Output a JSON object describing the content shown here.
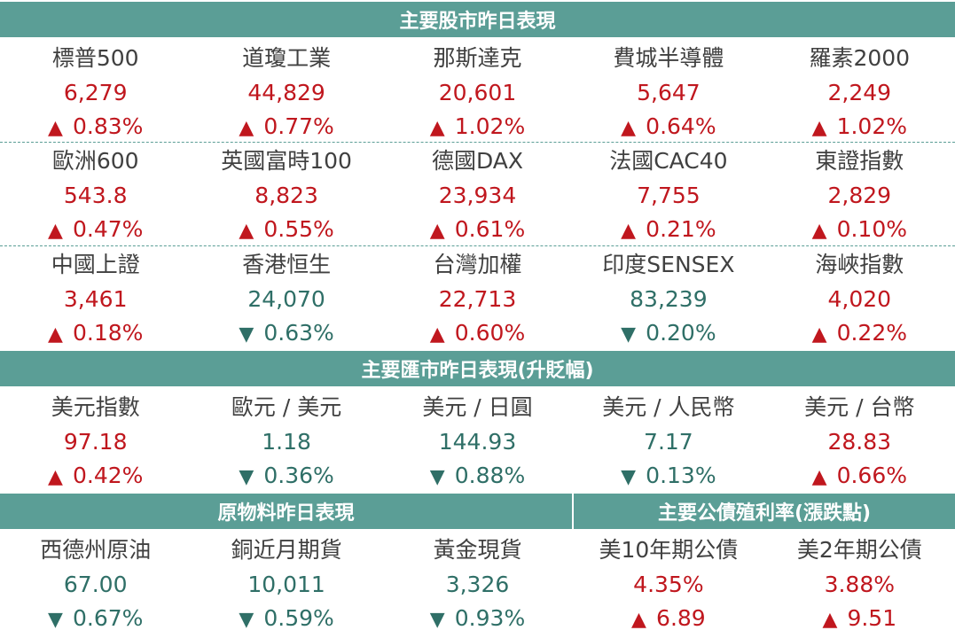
{
  "colors": {
    "header_bg": "#5b9e96",
    "up": "#c0171e",
    "down": "#2f6f67",
    "text": "#404040"
  },
  "stocks": {
    "title": "主要股市昨日表現",
    "rows": [
      [
        {
          "name": "標普500",
          "value": "6,279",
          "dir": "up",
          "arrow": "▲",
          "change": "0.83%"
        },
        {
          "name": "道瓊工業",
          "value": "44,829",
          "dir": "up",
          "arrow": "▲",
          "change": "0.77%"
        },
        {
          "name": "那斯達克",
          "value": "20,601",
          "dir": "up",
          "arrow": "▲",
          "change": "1.02%"
        },
        {
          "name": "費城半導體",
          "value": "5,647",
          "dir": "up",
          "arrow": "▲",
          "change": "0.64%"
        },
        {
          "name": "羅素2000",
          "value": "2,249",
          "dir": "up",
          "arrow": "▲",
          "change": "1.02%"
        }
      ],
      [
        {
          "name": "歐洲600",
          "value": "543.8",
          "dir": "up",
          "arrow": "▲",
          "change": "0.47%"
        },
        {
          "name": "英國富時100",
          "value": "8,823",
          "dir": "up",
          "arrow": "▲",
          "change": "0.55%"
        },
        {
          "name": "德國DAX",
          "value": "23,934",
          "dir": "up",
          "arrow": "▲",
          "change": "0.61%"
        },
        {
          "name": "法國CAC40",
          "value": "7,755",
          "dir": "up",
          "arrow": "▲",
          "change": "0.21%"
        },
        {
          "name": "東證指數",
          "value": "2,829",
          "dir": "up",
          "arrow": "▲",
          "change": "0.10%"
        }
      ],
      [
        {
          "name": "中國上證",
          "value": "3,461",
          "dir": "up",
          "arrow": "▲",
          "change": "0.18%"
        },
        {
          "name": "香港恒生",
          "value": "24,070",
          "dir": "down",
          "arrow": "▼",
          "change": "0.63%"
        },
        {
          "name": "台灣加權",
          "value": "22,713",
          "dir": "up",
          "arrow": "▲",
          "change": "0.60%"
        },
        {
          "name": "印度SENSEX",
          "value": "83,239",
          "dir": "down",
          "arrow": "▼",
          "change": "0.20%"
        },
        {
          "name": "海峽指數",
          "value": "4,020",
          "dir": "up",
          "arrow": "▲",
          "change": "0.22%"
        }
      ]
    ]
  },
  "fx": {
    "title": "主要匯市昨日表現(升貶幅)",
    "row": [
      {
        "name": "美元指數",
        "value": "97.18",
        "dir": "up",
        "arrow": "▲",
        "change": "0.42%"
      },
      {
        "name": "歐元 / 美元",
        "value": "1.18",
        "dir": "down",
        "arrow": "▼",
        "change": "0.36%"
      },
      {
        "name": "美元 / 日圓",
        "value": "144.93",
        "dir": "down",
        "arrow": "▼",
        "change": "0.88%"
      },
      {
        "name": "美元 / 人民幣",
        "value": "7.17",
        "dir": "down",
        "arrow": "▼",
        "change": "0.13%"
      },
      {
        "name": "美元 / 台幣",
        "value": "28.83",
        "dir": "up",
        "arrow": "▲",
        "change": "0.66%"
      }
    ]
  },
  "commodities": {
    "title": "原物料昨日表現",
    "row": [
      {
        "name": "西德州原油",
        "value": "67.00",
        "dir": "down",
        "arrow": "▼",
        "change": "0.67%"
      },
      {
        "name": "銅近月期貨",
        "value": "10,011",
        "dir": "down",
        "arrow": "▼",
        "change": "0.59%"
      },
      {
        "name": "黃金現貨",
        "value": "3,326",
        "dir": "down",
        "arrow": "▼",
        "change": "0.93%"
      }
    ]
  },
  "bonds": {
    "title": "主要公債殖利率(漲跌點)",
    "row": [
      {
        "name": "美10年期公債",
        "value": "4.35%",
        "dir": "up",
        "arrow": "▲",
        "change": "6.89"
      },
      {
        "name": "美2年期公債",
        "value": "3.88%",
        "dir": "up",
        "arrow": "▲",
        "change": "9.51"
      }
    ]
  }
}
